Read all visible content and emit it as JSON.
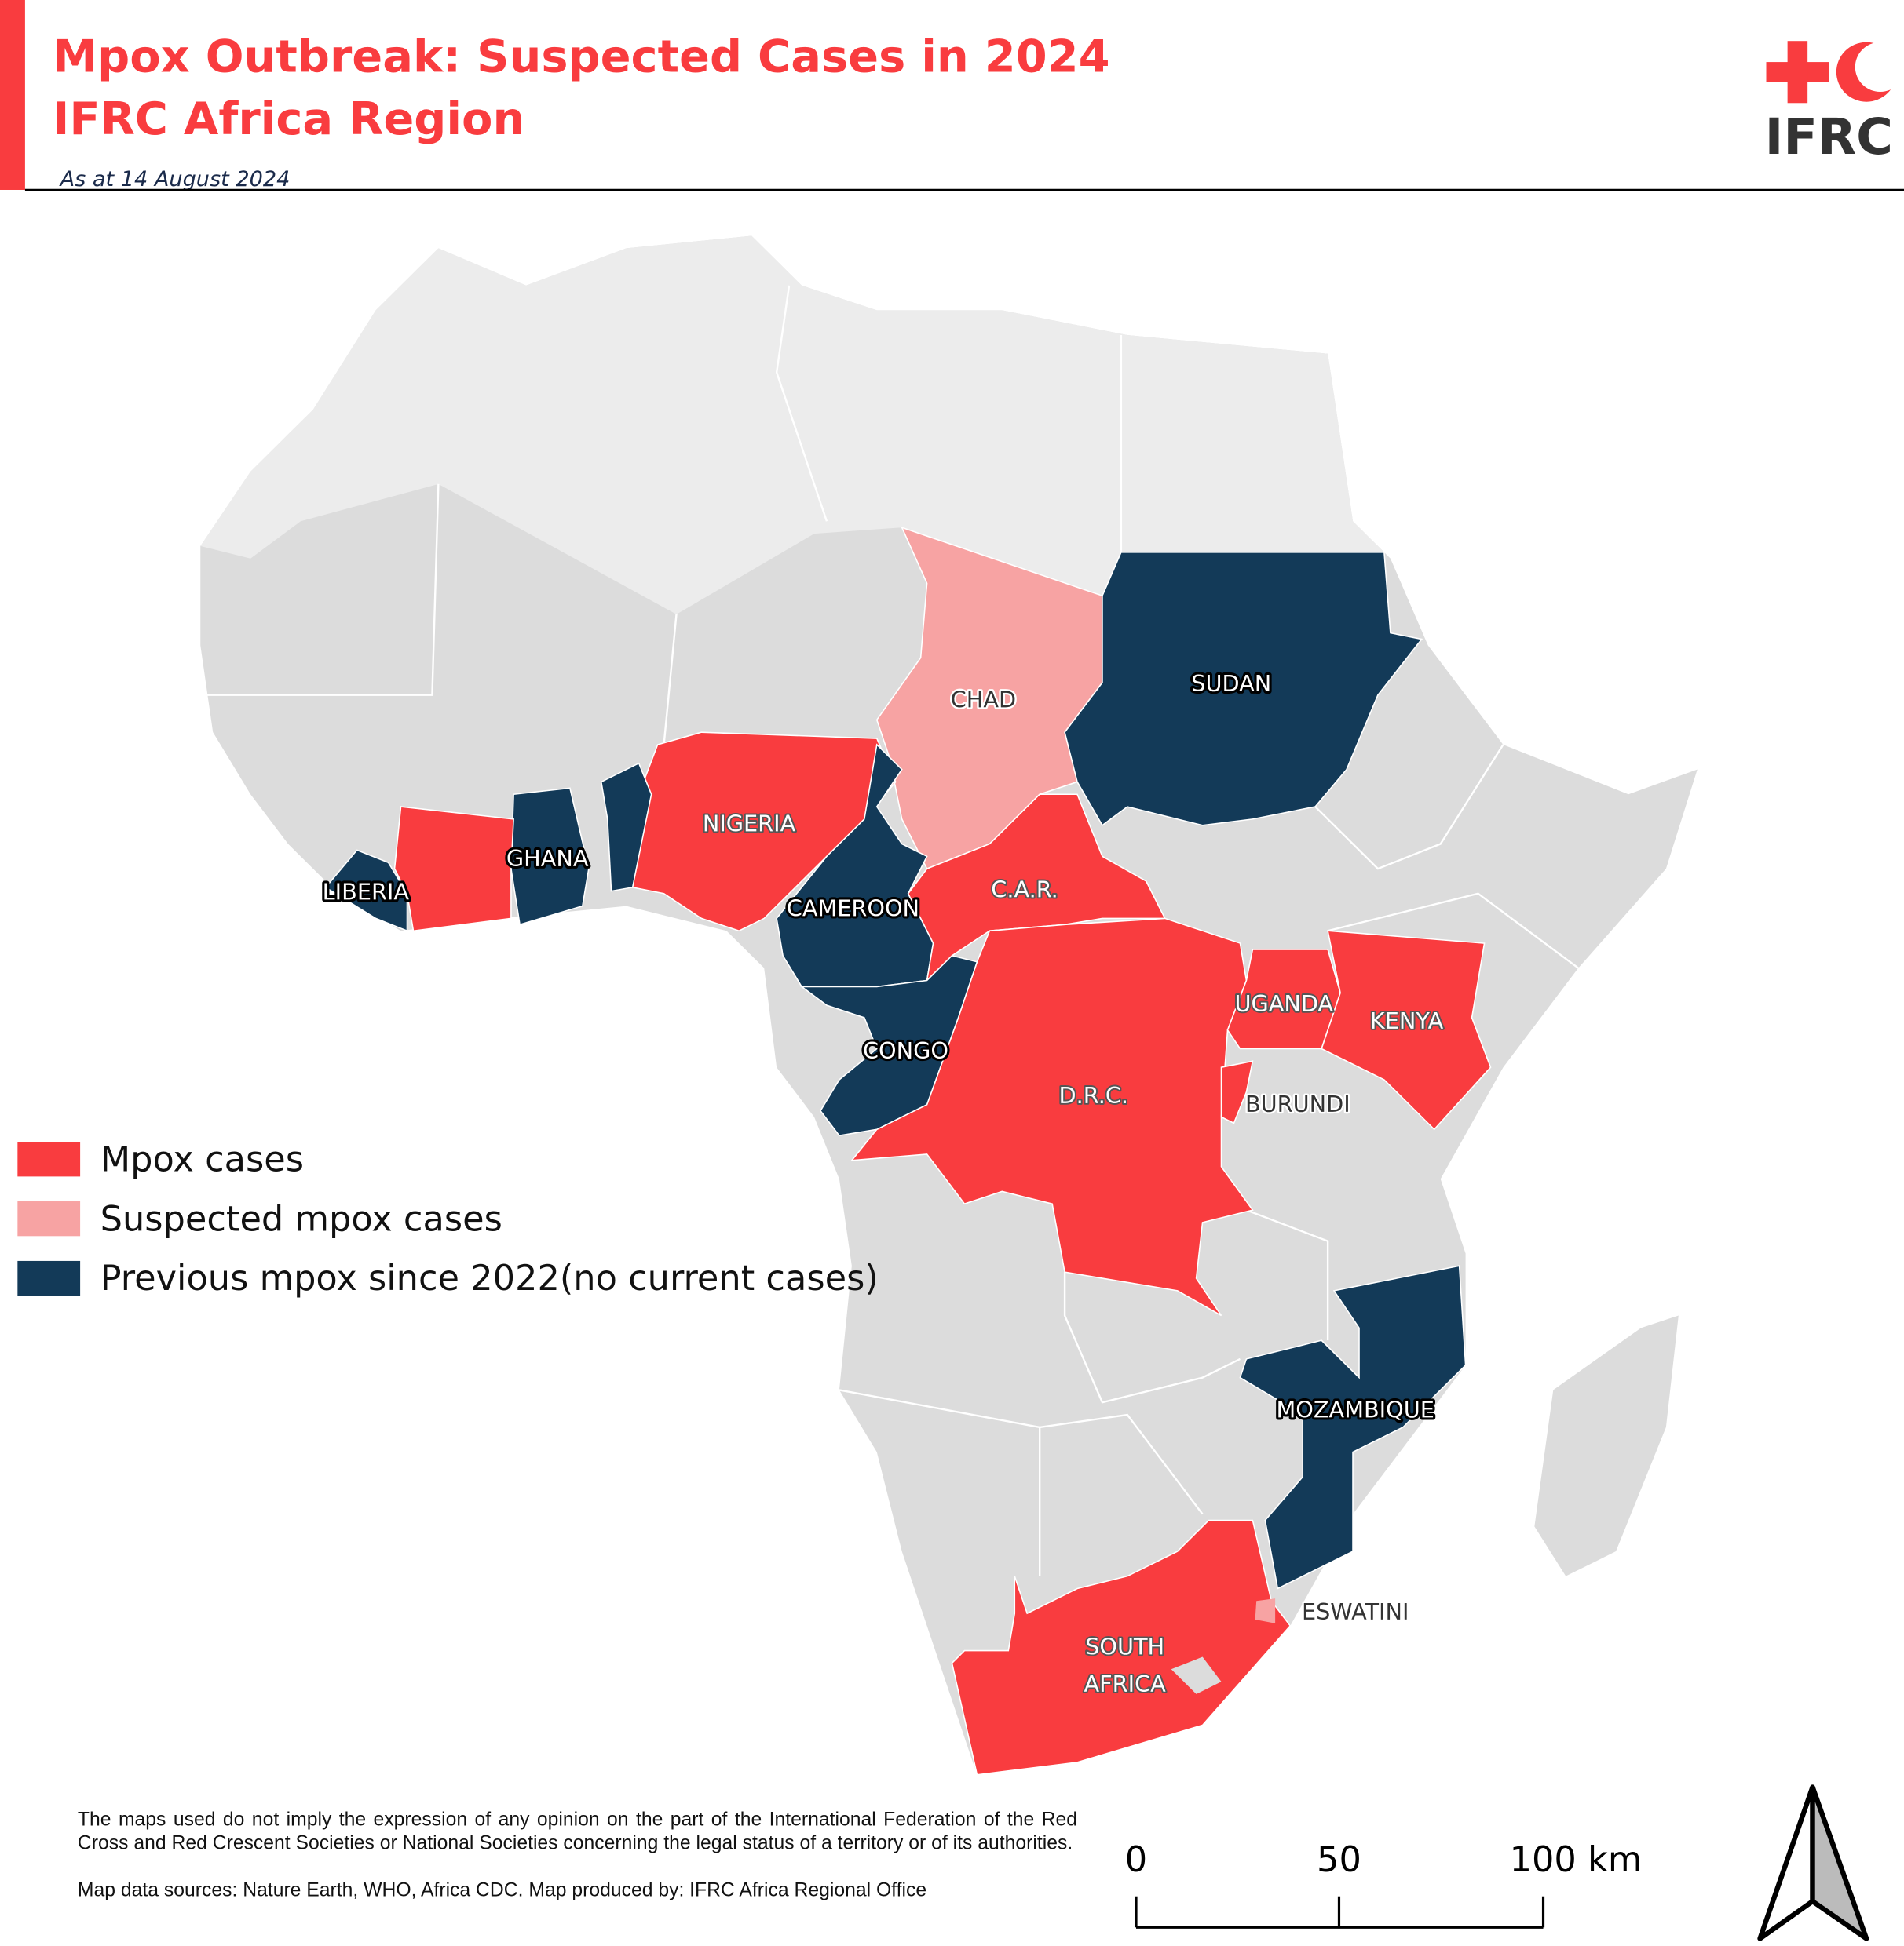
{
  "header": {
    "title_lines": [
      "Mpox Outbreak: Suspected Cases in 2024",
      "IFRC Africa Region"
    ],
    "subtitle": "As at 14 August 2024",
    "logo_text": "IFRC"
  },
  "legend": [
    {
      "label": "Mpox cases",
      "color": "#f93c3f"
    },
    {
      "label": "Suspected mpox cases",
      "color": "#f7a3a3"
    },
    {
      "label": "Previous mpox since 2022(no current cases)",
      "color": "#133a58"
    }
  ],
  "country_labels": [
    "CHAD",
    "SUDAN",
    "NIGERIA",
    "LIBERIA",
    "GHANA",
    "CAMEROON",
    "C.A.R.",
    "CONGO",
    "D.R.C.",
    "UGANDA",
    "KENYA",
    "BURUNDI",
    "MOZAMBIQUE",
    "ESWATINI",
    "SOUTH",
    "AFRICA"
  ],
  "scale_bar": [
    "0",
    "50",
    "100 km"
  ],
  "disclaimer": "The maps used do not imply the expression of any opinion on the part of the International Federation of the Red Cross and Red Crescent Societies or National Societies concerning the legal status of a territory or of its authorities.",
  "sources": "Map data sources: Nature Earth, WHO, Africa CDC. Map produced by: IFRC Africa Regional Office"
}
